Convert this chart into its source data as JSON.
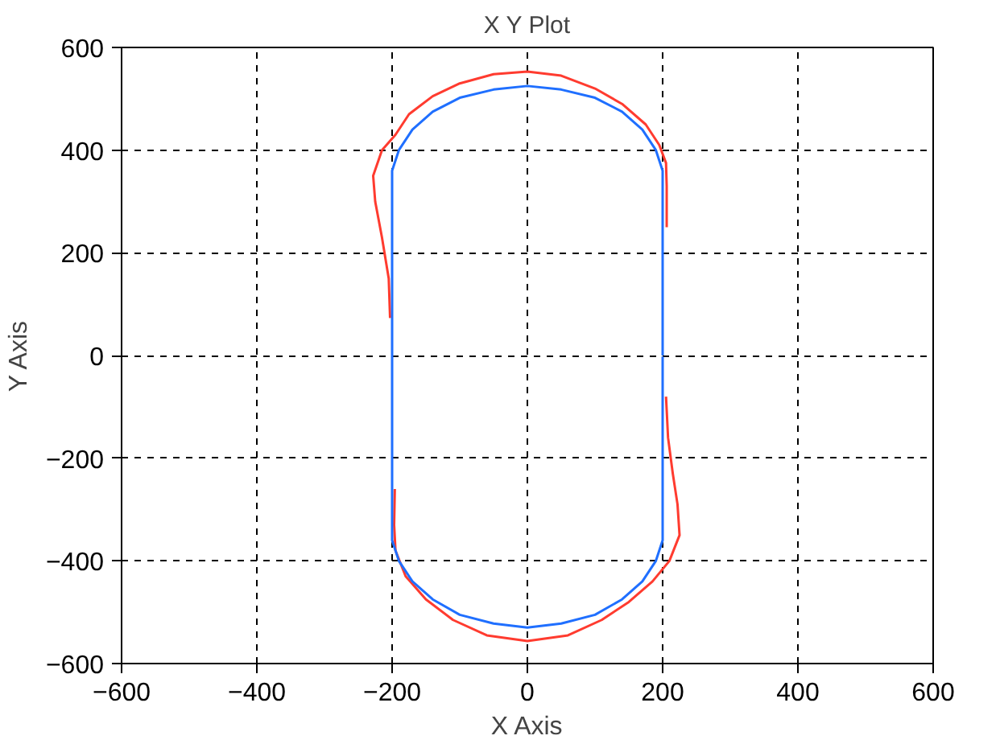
{
  "chart_data": {
    "type": "line",
    "title": "X Y Plot",
    "xlabel": "X Axis",
    "ylabel": "Y Axis",
    "xlim": [
      -600,
      600
    ],
    "ylim": [
      -600,
      600
    ],
    "xticks": [
      -600,
      -400,
      -200,
      0,
      200,
      400,
      600
    ],
    "yticks": [
      -600,
      -400,
      -200,
      0,
      200,
      400,
      600
    ],
    "grid": true,
    "marker": "none",
    "line_style": "solid",
    "series": [
      {
        "color": "#ff3b2f",
        "x": [
          206,
          206,
          205,
          195,
          175,
          140,
          100,
          50,
          0,
          -50,
          -100,
          -140,
          -175,
          -195,
          -215,
          -228,
          -225,
          -215,
          -205,
          -203,
          null,
          -196,
          -197,
          -195,
          -180,
          -150,
          -110,
          -60,
          0,
          60,
          110,
          150,
          185,
          210,
          225,
          222,
          215,
          208,
          205
        ],
        "values": [
          250,
          330,
          375,
          410,
          450,
          490,
          520,
          545,
          553,
          548,
          530,
          505,
          470,
          430,
          400,
          350,
          300,
          230,
          150,
          73,
          null,
          -260,
          -330,
          -380,
          -430,
          -475,
          -515,
          -545,
          -556,
          -545,
          -515,
          -480,
          -440,
          -400,
          -350,
          -290,
          -230,
          -160,
          -80
        ]
      },
      {
        "color": "#1f6fff",
        "x": [
          200,
          200,
          190,
          170,
          140,
          100,
          50,
          0,
          -50,
          -100,
          -140,
          -170,
          -190,
          -200,
          -200,
          -190,
          -170,
          -140,
          -100,
          -50,
          0,
          50,
          100,
          140,
          170,
          190,
          200,
          200
        ],
        "values": [
          0,
          360,
          400,
          440,
          475,
          502,
          518,
          525,
          518,
          502,
          475,
          440,
          400,
          360,
          -360,
          -400,
          -440,
          -475,
          -505,
          -522,
          -530,
          -522,
          -505,
          -475,
          -440,
          -400,
          -360,
          -2
        ]
      }
    ]
  }
}
